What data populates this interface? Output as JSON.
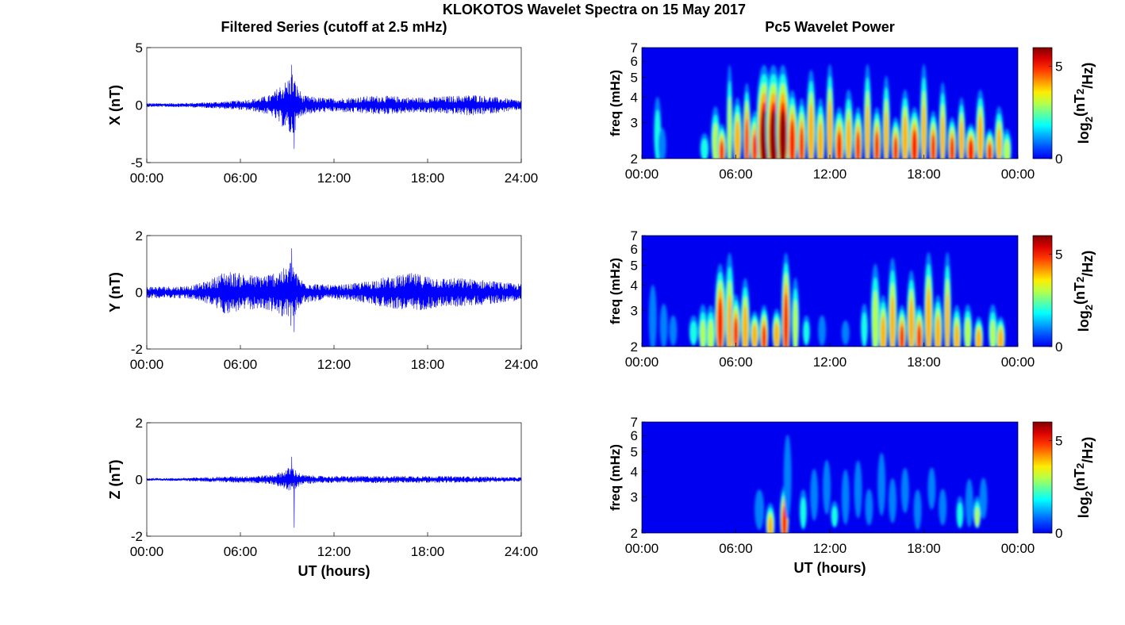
{
  "figure": {
    "title": "KLOKOTOS Wavelet Spectra on 15 May 2017",
    "left_title": "Filtered Series (cutoff at 2.5 mHz)",
    "right_title": "Pc5 Wavelet Power"
  },
  "chart_data": [
    {
      "type": "line",
      "panel": "X",
      "title": "",
      "xlabel": "",
      "ylabel": "X (nT)",
      "xlim": [
        0,
        24
      ],
      "ylim": [
        -5,
        5
      ],
      "xticks": [
        "00:00",
        "06:00",
        "12:00",
        "18:00",
        "24:00"
      ],
      "yticks": [
        "5",
        "0",
        "-5"
      ],
      "series": [
        {
          "color": "#0000ff"
        }
      ],
      "envelope_x_hours": [
        0,
        2,
        3,
        4,
        5,
        6,
        7,
        8,
        8.5,
        9,
        9.3,
        9.6,
        10,
        11,
        12,
        13,
        14,
        15,
        16,
        17,
        18,
        19,
        20,
        21,
        22,
        23,
        24
      ],
      "envelope_amp": [
        0.2,
        0.2,
        0.25,
        0.3,
        0.4,
        0.5,
        0.7,
        1.1,
        2.0,
        2.6,
        3.5,
        2.2,
        1.0,
        0.8,
        0.7,
        0.8,
        0.9,
        1.0,
        0.9,
        0.8,
        0.8,
        0.9,
        1.0,
        1.1,
        0.9,
        0.7,
        0.5
      ],
      "extremes": {
        "max": 3.5,
        "min": -3.8
      }
    },
    {
      "type": "line",
      "panel": "Y",
      "title": "",
      "xlabel": "",
      "ylabel": "Y (nT)",
      "xlim": [
        0,
        24
      ],
      "ylim": [
        -2,
        2
      ],
      "xticks": [
        "00:00",
        "06:00",
        "12:00",
        "18:00",
        "24:00"
      ],
      "yticks": [
        "2",
        "0",
        "-2"
      ],
      "series": [
        {
          "color": "#0000ff"
        }
      ],
      "envelope_x_hours": [
        0,
        2,
        3,
        4,
        5,
        6,
        7,
        8,
        8.5,
        9,
        9.3,
        9.6,
        10,
        11,
        12,
        13,
        14,
        15,
        16,
        17,
        18,
        19,
        20,
        21,
        22,
        23,
        24
      ],
      "envelope_amp": [
        0.25,
        0.25,
        0.3,
        0.5,
        0.9,
        0.8,
        0.7,
        0.8,
        1.0,
        1.0,
        1.5,
        0.8,
        0.5,
        0.35,
        0.3,
        0.35,
        0.45,
        0.6,
        0.7,
        0.8,
        0.7,
        0.6,
        0.6,
        0.55,
        0.5,
        0.4,
        0.35
      ],
      "extremes": {
        "max": 1.55,
        "min": -1.4
      }
    },
    {
      "type": "line",
      "panel": "Z",
      "title": "",
      "xlabel": "UT (hours)",
      "ylabel": "Z (nT)",
      "xlim": [
        0,
        24
      ],
      "ylim": [
        -2,
        2
      ],
      "xticks": [
        "00:00",
        "06:00",
        "12:00",
        "18:00",
        "24:00"
      ],
      "yticks": [
        "2",
        "0",
        "-2"
      ],
      "series": [
        {
          "color": "#0000ff"
        }
      ],
      "envelope_x_hours": [
        0,
        2,
        3,
        4,
        5,
        6,
        7,
        8,
        8.5,
        9,
        9.3,
        9.6,
        10,
        11,
        12,
        13,
        14,
        15,
        16,
        17,
        18,
        19,
        20,
        21,
        22,
        23,
        24
      ],
      "envelope_amp": [
        0.06,
        0.06,
        0.08,
        0.1,
        0.12,
        0.14,
        0.16,
        0.2,
        0.3,
        0.45,
        0.6,
        0.35,
        0.2,
        0.15,
        0.14,
        0.14,
        0.15,
        0.15,
        0.15,
        0.15,
        0.15,
        0.14,
        0.14,
        0.13,
        0.12,
        0.1,
        0.09
      ],
      "extremes": {
        "max": 0.8,
        "min": -1.7
      }
    },
    {
      "type": "heatmap",
      "panel": "X wavelet",
      "title": "",
      "xlabel": "",
      "ylabel": "freq (mHz)",
      "colorbar_label": "log2(nT2/Hz)",
      "colorbar_ticks": [
        0,
        5
      ],
      "colorscale": "jet",
      "clim": [
        0,
        6
      ],
      "xlim": [
        0,
        24
      ],
      "ylim": [
        2,
        7
      ],
      "y_scale": "log",
      "xticks": [
        "00:00",
        "06:00",
        "12:00",
        "18:00",
        "00:00"
      ],
      "yticks": [
        "2",
        "3",
        "4",
        "5",
        "6",
        "7"
      ],
      "blobs": [
        [
          1.0,
          2.2,
          4.5,
          0.25,
          2.5
        ],
        [
          1.3,
          2.1,
          3.0,
          0.25,
          2.0
        ],
        [
          4.0,
          2.1,
          2.8,
          0.3,
          2.5
        ],
        [
          4.7,
          2.1,
          4.0,
          0.3,
          3.5
        ],
        [
          5.1,
          2.0,
          3.2,
          0.3,
          5.0
        ],
        [
          5.6,
          2.0,
          7.0,
          0.2,
          3.5
        ],
        [
          6.1,
          2.1,
          4.5,
          0.3,
          4.5
        ],
        [
          6.7,
          2.0,
          5.5,
          0.25,
          5.0
        ],
        [
          7.2,
          2.0,
          3.8,
          0.3,
          5.0
        ],
        [
          7.8,
          2.0,
          7.0,
          0.5,
          6.0
        ],
        [
          8.4,
          2.0,
          7.0,
          0.5,
          6.0
        ],
        [
          9.0,
          2.0,
          7.0,
          0.45,
          6.0
        ],
        [
          9.6,
          2.0,
          5.0,
          0.35,
          5.5
        ],
        [
          10.2,
          2.0,
          4.5,
          0.3,
          5.0
        ],
        [
          10.8,
          2.1,
          6.5,
          0.3,
          4.5
        ],
        [
          11.4,
          2.0,
          4.5,
          0.3,
          4.5
        ],
        [
          12.0,
          2.1,
          7.0,
          0.25,
          4.5
        ],
        [
          12.6,
          2.0,
          4.0,
          0.35,
          5.0
        ],
        [
          13.2,
          2.1,
          5.0,
          0.3,
          4.0
        ],
        [
          13.8,
          2.0,
          4.0,
          0.3,
          5.0
        ],
        [
          14.4,
          2.1,
          7.0,
          0.25,
          4.0
        ],
        [
          15.0,
          2.0,
          4.0,
          0.3,
          5.0
        ],
        [
          15.6,
          2.1,
          6.0,
          0.25,
          4.0
        ],
        [
          16.2,
          2.0,
          3.5,
          0.3,
          5.0
        ],
        [
          16.8,
          2.1,
          5.0,
          0.3,
          4.5
        ],
        [
          17.4,
          2.0,
          4.0,
          0.35,
          5.5
        ],
        [
          18.0,
          2.1,
          7.0,
          0.25,
          4.0
        ],
        [
          18.6,
          2.0,
          3.8,
          0.3,
          5.0
        ],
        [
          19.2,
          2.1,
          5.5,
          0.25,
          4.0
        ],
        [
          19.8,
          2.0,
          3.5,
          0.3,
          5.0
        ],
        [
          20.4,
          2.1,
          4.5,
          0.25,
          4.5
        ],
        [
          21.0,
          2.0,
          3.2,
          0.35,
          5.5
        ],
        [
          21.6,
          2.1,
          5.0,
          0.3,
          4.5
        ],
        [
          22.2,
          2.0,
          3.0,
          0.3,
          5.0
        ],
        [
          22.8,
          2.1,
          4.0,
          0.3,
          4.0
        ],
        [
          23.3,
          2.0,
          3.0,
          0.3,
          3.5
        ]
      ]
    },
    {
      "type": "heatmap",
      "panel": "Y wavelet",
      "title": "",
      "xlabel": "",
      "ylabel": "freq (mHz)",
      "colorbar_label": "log2(nT2/Hz)",
      "colorbar_ticks": [
        0,
        5
      ],
      "colorscale": "jet",
      "clim": [
        0,
        6
      ],
      "xlim": [
        0,
        24
      ],
      "ylim": [
        2,
        7
      ],
      "y_scale": "log",
      "xticks": [
        "00:00",
        "06:00",
        "12:00",
        "18:00",
        "00:00"
      ],
      "yticks": [
        "2",
        "3",
        "4",
        "5",
        "6",
        "7"
      ],
      "blobs": [
        [
          0.7,
          2.2,
          4.5,
          0.25,
          2.0
        ],
        [
          1.4,
          2.2,
          3.5,
          0.25,
          2.0
        ],
        [
          2.0,
          2.2,
          3.0,
          0.25,
          1.5
        ],
        [
          3.3,
          2.2,
          3.0,
          0.3,
          2.5
        ],
        [
          3.9,
          2.1,
          3.5,
          0.3,
          3.0
        ],
        [
          4.4,
          2.0,
          3.5,
          0.3,
          3.5
        ],
        [
          5.0,
          2.1,
          6.0,
          0.35,
          5.5
        ],
        [
          5.6,
          2.0,
          7.0,
          0.3,
          4.0
        ],
        [
          6.0,
          2.1,
          4.0,
          0.3,
          5.0
        ],
        [
          6.6,
          2.0,
          5.0,
          0.3,
          4.5
        ],
        [
          7.2,
          2.1,
          3.2,
          0.3,
          4.5
        ],
        [
          7.8,
          2.0,
          3.5,
          0.3,
          5.0
        ],
        [
          8.6,
          2.1,
          3.3,
          0.3,
          4.5
        ],
        [
          9.2,
          2.0,
          7.0,
          0.3,
          5.5
        ],
        [
          9.8,
          2.1,
          5.0,
          0.25,
          3.5
        ],
        [
          10.5,
          2.2,
          3.0,
          0.25,
          2.5
        ],
        [
          11.5,
          2.2,
          3.0,
          0.25,
          2.0
        ],
        [
          13.0,
          2.2,
          2.8,
          0.25,
          2.0
        ],
        [
          14.2,
          2.2,
          3.5,
          0.25,
          2.5
        ],
        [
          14.9,
          2.1,
          6.0,
          0.3,
          3.5
        ],
        [
          15.4,
          2.0,
          4.0,
          0.3,
          4.5
        ],
        [
          16.0,
          2.1,
          6.5,
          0.3,
          4.0
        ],
        [
          16.6,
          2.0,
          3.5,
          0.3,
          5.0
        ],
        [
          17.2,
          2.1,
          5.5,
          0.3,
          4.5
        ],
        [
          17.7,
          2.0,
          3.5,
          0.3,
          5.0
        ],
        [
          18.3,
          2.1,
          7.0,
          0.3,
          4.5
        ],
        [
          18.9,
          2.0,
          4.0,
          0.3,
          4.5
        ],
        [
          19.5,
          2.1,
          7.0,
          0.25,
          4.0
        ],
        [
          20.1,
          2.0,
          3.5,
          0.3,
          4.0
        ],
        [
          20.8,
          2.1,
          3.5,
          0.3,
          3.5
        ],
        [
          21.5,
          2.0,
          3.0,
          0.3,
          4.5
        ],
        [
          22.4,
          2.1,
          3.5,
          0.3,
          3.0
        ],
        [
          22.9,
          2.0,
          3.0,
          0.3,
          4.5
        ]
      ]
    },
    {
      "type": "heatmap",
      "panel": "Z wavelet",
      "title": "",
      "xlabel": "UT (hours)",
      "ylabel": "freq (mHz)",
      "colorbar_label": "log2(nT2/Hz)",
      "colorbar_ticks": [
        0,
        5
      ],
      "colorscale": "jet",
      "clim": [
        0,
        6
      ],
      "xlim": [
        0,
        24
      ],
      "ylim": [
        2,
        7
      ],
      "y_scale": "log",
      "xticks": [
        "00:00",
        "06:00",
        "12:00",
        "18:00",
        "00:00"
      ],
      "yticks": [
        "2",
        "3",
        "4",
        "5",
        "6",
        "7"
      ],
      "blobs": [
        [
          5.0,
          2.8,
          3.3,
          0.2,
          1.0
        ],
        [
          6.5,
          3.0,
          4.5,
          0.25,
          1.0
        ],
        [
          7.5,
          2.3,
          3.5,
          0.3,
          2.0
        ],
        [
          8.2,
          2.0,
          3.0,
          0.3,
          4.0
        ],
        [
          9.1,
          2.0,
          3.8,
          0.3,
          5.5
        ],
        [
          9.3,
          2.8,
          7.0,
          0.25,
          2.0
        ],
        [
          10.3,
          2.3,
          3.5,
          0.25,
          2.5
        ],
        [
          11.0,
          2.6,
          4.5,
          0.25,
          2.0
        ],
        [
          11.8,
          2.8,
          5.0,
          0.25,
          1.5
        ],
        [
          12.3,
          2.3,
          3.0,
          0.25,
          2.5
        ],
        [
          13.0,
          2.5,
          4.5,
          0.25,
          2.0
        ],
        [
          13.8,
          2.7,
          5.0,
          0.25,
          1.5
        ],
        [
          14.5,
          2.4,
          3.5,
          0.25,
          2.0
        ],
        [
          15.3,
          2.8,
          5.5,
          0.25,
          1.5
        ],
        [
          16.0,
          2.5,
          4.0,
          0.25,
          2.0
        ],
        [
          16.8,
          2.8,
          4.5,
          0.25,
          1.5
        ],
        [
          17.6,
          2.3,
          3.5,
          0.25,
          2.0
        ],
        [
          18.5,
          2.9,
          4.5,
          0.25,
          1.5
        ],
        [
          19.2,
          2.4,
          3.5,
          0.25,
          2.0
        ],
        [
          20.3,
          2.3,
          3.2,
          0.25,
          2.5
        ],
        [
          20.9,
          2.4,
          4.0,
          0.25,
          2.0
        ],
        [
          21.4,
          2.3,
          3.2,
          0.25,
          3.0
        ],
        [
          21.8,
          2.6,
          4.0,
          0.25,
          2.0
        ]
      ]
    }
  ]
}
